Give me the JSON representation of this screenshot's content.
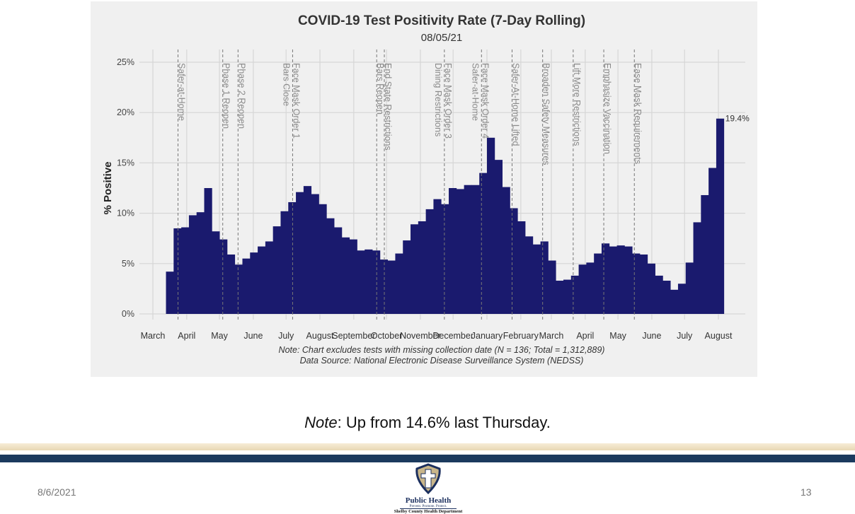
{
  "chart_data": {
    "type": "bar",
    "title": "COVID-19 Test Positivity Rate (7-Day Rolling)",
    "subtitle": "08/05/21",
    "ylabel": "% Positive",
    "xlabel": "",
    "ylim": [
      0,
      25
    ],
    "yticks": [
      "0%",
      "5%",
      "10%",
      "15%",
      "20%",
      "25%"
    ],
    "ytick_values": [
      0,
      5,
      10,
      15,
      20,
      25
    ],
    "xlim": [
      "2020-02-18",
      "2021-08-25"
    ],
    "grid": true,
    "bar_color": "#1a1a6e",
    "month_ticks": [
      {
        "date": "2020-03-01",
        "label": "March"
      },
      {
        "date": "2020-04-01",
        "label": "April"
      },
      {
        "date": "2020-05-01",
        "label": "May"
      },
      {
        "date": "2020-06-01",
        "label": "June"
      },
      {
        "date": "2020-07-01",
        "label": "July"
      },
      {
        "date": "2020-08-01",
        "label": "August"
      },
      {
        "date": "2020-09-01",
        "label": "September"
      },
      {
        "date": "2020-10-01",
        "label": "October"
      },
      {
        "date": "2020-11-01",
        "label": "November"
      },
      {
        "date": "2020-12-01",
        "label": "December"
      },
      {
        "date": "2021-01-01",
        "label": "January"
      },
      {
        "date": "2021-02-01",
        "label": "February"
      },
      {
        "date": "2021-03-01",
        "label": "March"
      },
      {
        "date": "2021-04-01",
        "label": "April"
      },
      {
        "date": "2021-05-01",
        "label": "May"
      },
      {
        "date": "2021-06-01",
        "label": "June"
      },
      {
        "date": "2021-07-01",
        "label": "July"
      },
      {
        "date": "2021-08-01",
        "label": "August"
      }
    ],
    "x": [
      "2020-03-13",
      "2020-03-20",
      "2020-03-27",
      "2020-04-03",
      "2020-04-10",
      "2020-04-17",
      "2020-04-24",
      "2020-05-01",
      "2020-05-08",
      "2020-05-15",
      "2020-05-22",
      "2020-05-29",
      "2020-06-05",
      "2020-06-12",
      "2020-06-19",
      "2020-06-26",
      "2020-07-03",
      "2020-07-10",
      "2020-07-17",
      "2020-07-24",
      "2020-07-31",
      "2020-08-07",
      "2020-08-14",
      "2020-08-21",
      "2020-08-28",
      "2020-09-04",
      "2020-09-11",
      "2020-09-18",
      "2020-09-25",
      "2020-10-02",
      "2020-10-09",
      "2020-10-16",
      "2020-10-23",
      "2020-10-30",
      "2020-11-06",
      "2020-11-13",
      "2020-11-20",
      "2020-11-27",
      "2020-12-04",
      "2020-12-11",
      "2020-12-18",
      "2020-12-25",
      "2021-01-01",
      "2021-01-08",
      "2021-01-15",
      "2021-01-22",
      "2021-01-29",
      "2021-02-05",
      "2021-02-12",
      "2021-02-19",
      "2021-02-26",
      "2021-03-05",
      "2021-03-12",
      "2021-03-19",
      "2021-03-26",
      "2021-04-02",
      "2021-04-09",
      "2021-04-16",
      "2021-04-23",
      "2021-04-30",
      "2021-05-07",
      "2021-05-14",
      "2021-05-21",
      "2021-05-28",
      "2021-06-04",
      "2021-06-11",
      "2021-06-18",
      "2021-06-25",
      "2021-07-02",
      "2021-07-09",
      "2021-07-16",
      "2021-07-23",
      "2021-07-30"
    ],
    "values": [
      4.2,
      8.5,
      8.6,
      9.8,
      10.1,
      12.5,
      8.2,
      7.4,
      5.9,
      4.9,
      5.5,
      6.1,
      6.7,
      7.2,
      8.7,
      10.2,
      11.1,
      12.1,
      12.7,
      11.9,
      10.9,
      9.5,
      8.6,
      7.6,
      7.4,
      6.3,
      6.4,
      6.3,
      5.4,
      5.3,
      6.0,
      7.3,
      8.9,
      9.2,
      10.4,
      11.4,
      10.9,
      12.5,
      12.4,
      12.8,
      12.8,
      14.0,
      17.5,
      15.3,
      12.6,
      10.5,
      9.2,
      7.7,
      6.9,
      7.2,
      5.3,
      3.3,
      3.4,
      3.8,
      4.9,
      5.1,
      6.0,
      7.0,
      6.7,
      6.8,
      6.7,
      6.0,
      5.9,
      5.0,
      3.8,
      3.3,
      2.4,
      3.0,
      5.1,
      9.1,
      11.8,
      14.5,
      19.4
    ],
    "last_value_label": "19.4%",
    "events": [
      {
        "date": "2020-03-24",
        "lines": [
          "Safer-at-Home"
        ]
      },
      {
        "date": "2020-05-04",
        "lines": [
          "Phase 1 Reopen"
        ]
      },
      {
        "date": "2020-05-18",
        "lines": [
          "Phase 2 Reopen"
        ]
      },
      {
        "date": "2020-07-07",
        "lines": [
          "Face Mask Order 1",
          "Bars Close"
        ]
      },
      {
        "date": "2020-09-22",
        "lines": [
          "Bars Reopen"
        ]
      },
      {
        "date": "2020-09-29",
        "lines": [
          "End State Restrictions"
        ]
      },
      {
        "date": "2020-11-23",
        "lines": [
          "Face Mask Order 3",
          "Dining Restrictions"
        ]
      },
      {
        "date": "2020-12-27",
        "lines": [
          "Face Mask Order 4",
          "Safer-at-Home"
        ]
      },
      {
        "date": "2021-01-24",
        "lines": [
          "Safer-At-Home Lifted"
        ]
      },
      {
        "date": "2021-02-21",
        "lines": [
          "Broaden Safety Measures"
        ]
      },
      {
        "date": "2021-03-21",
        "lines": [
          "Lift More Restrictions"
        ]
      },
      {
        "date": "2021-04-18",
        "lines": [
          "Emphasize Vaccination"
        ]
      },
      {
        "date": "2021-05-16",
        "lines": [
          "Ease Mask Requirements"
        ]
      }
    ],
    "annotations": [
      "Note: Chart excludes tests with missing collection date (N = 136; Total = 1,312,889)",
      "Data Source: National Electronic Disease Surveillance System (NEDSS)"
    ]
  },
  "slide": {
    "note_label": "Note",
    "note_text": ": Up from 14.6% last Thursday.",
    "footer_date": "8/6/2021",
    "page_number": "13",
    "logo": {
      "title": "Public Health",
      "tagline": "Prevent. Promote. Protect.",
      "department": "Shelby County Health Department"
    },
    "colors": {
      "navy_band": "#1b3a5e",
      "tan_band": "#efe2c4",
      "panel": "#f0f0f0"
    }
  }
}
